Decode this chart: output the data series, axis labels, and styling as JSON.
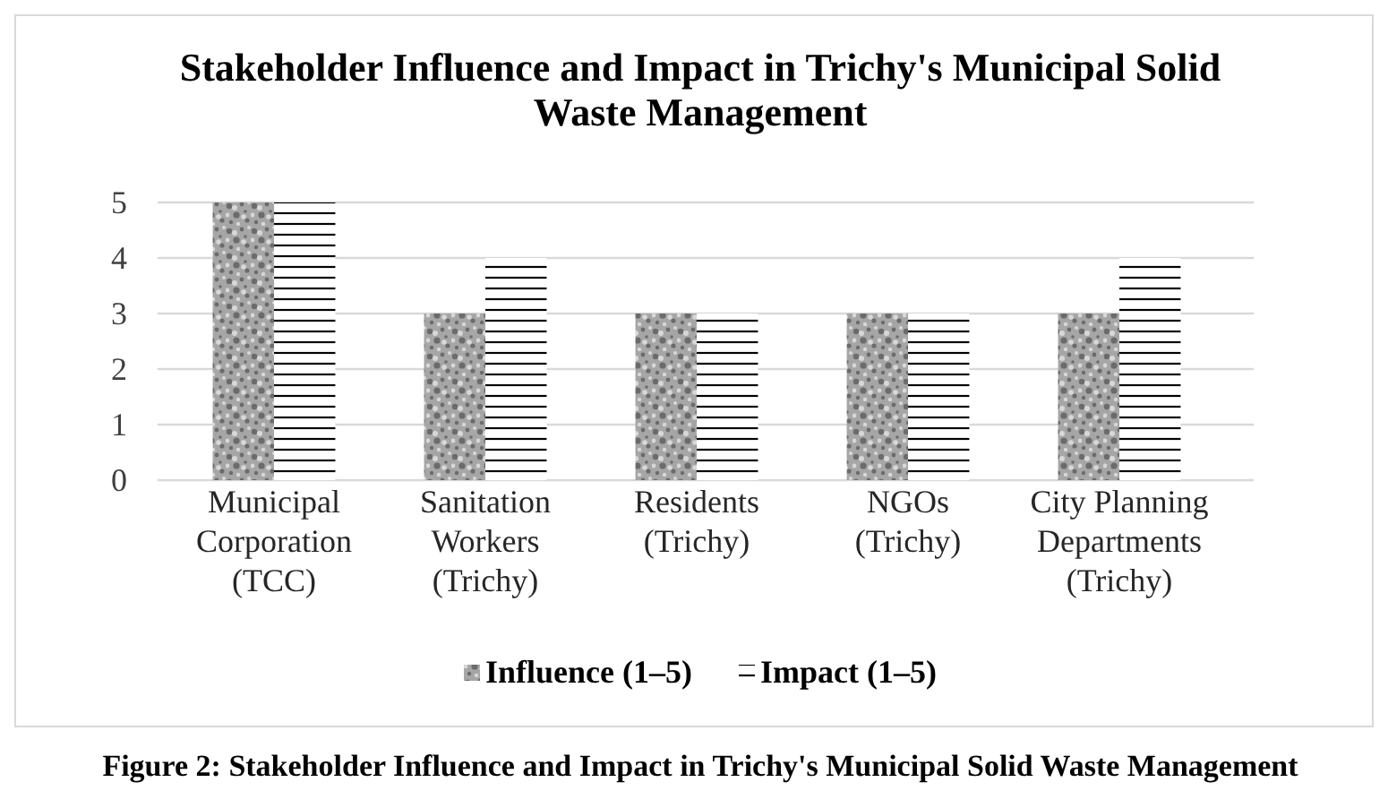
{
  "chart_data": {
    "type": "bar",
    "title": "Stakeholder Influence and Impact in Trichy's Municipal Solid Waste Management",
    "categories": [
      "Municipal Corporation (TCC)",
      "Sanitation Workers (Trichy)",
      "Residents (Trichy)",
      "NGOs (Trichy)",
      "City Planning Departments (Trichy)"
    ],
    "series": [
      {
        "name": "Influence (1–5)",
        "color": "#a6a6a6",
        "values": [
          5,
          3,
          3,
          3,
          3
        ]
      },
      {
        "name": "Impact (1–5)",
        "color": "#ffffff",
        "values": [
          5,
          4,
          3,
          3,
          4
        ]
      }
    ],
    "ylim": [
      0,
      5
    ],
    "yticks": [
      0,
      1,
      2,
      3,
      4,
      5
    ],
    "grid": "y",
    "legend": "bottom",
    "annotations": [
      "Figure 2: Stakeholder Influence and Impact in Trichy's Municipal Solid Waste Management"
    ]
  }
}
